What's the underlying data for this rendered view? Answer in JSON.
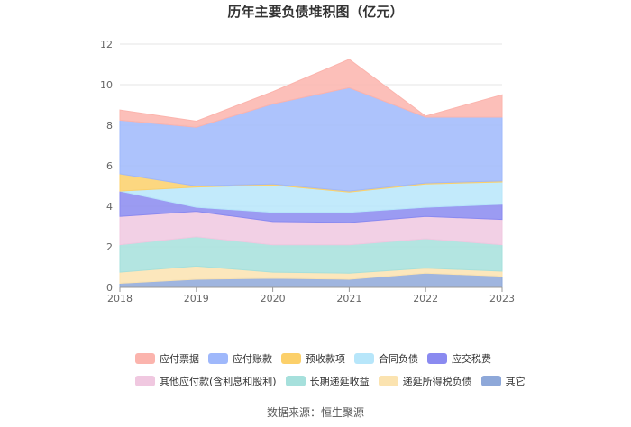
{
  "chart_data": {
    "type": "area",
    "stacked": true,
    "title": "历年主要负债堆积图（亿元）",
    "x": [
      "2018",
      "2019",
      "2020",
      "2021",
      "2022",
      "2023"
    ],
    "ylim": [
      0,
      12
    ],
    "yticks": [
      0,
      2,
      4,
      6,
      8,
      10,
      12
    ],
    "grid": true,
    "legend_position": "bottom",
    "series": [
      {
        "name": "其它",
        "color": "#8ea8d9",
        "values": [
          0.2,
          0.4,
          0.45,
          0.4,
          0.7,
          0.55
        ]
      },
      {
        "name": "递延所得税负债",
        "color": "#fbe3b0",
        "values": [
          0.55,
          0.65,
          0.3,
          0.3,
          0.25,
          0.25
        ]
      },
      {
        "name": "长期递延收益",
        "color": "#a6e0dc",
        "values": [
          1.35,
          1.45,
          1.35,
          1.4,
          1.45,
          1.3
        ]
      },
      {
        "name": "其他应付款(含利息和股利)",
        "color": "#f0c8e0",
        "values": [
          1.4,
          1.25,
          1.15,
          1.1,
          1.1,
          1.25
        ]
      },
      {
        "name": "应交税费",
        "color": "#8a8af0",
        "values": [
          1.25,
          0.2,
          0.45,
          0.5,
          0.45,
          0.75
        ]
      },
      {
        "name": "合同负债",
        "color": "#b7e6fa",
        "values": [
          0.0,
          1.0,
          1.35,
          1.0,
          1.15,
          1.1
        ]
      },
      {
        "name": "预收款项",
        "color": "#fcd06a",
        "values": [
          0.85,
          0.05,
          0.05,
          0.05,
          0.05,
          0.05
        ]
      },
      {
        "name": "应付账款",
        "color": "#9fb8fb",
        "values": [
          2.65,
          2.9,
          3.95,
          5.1,
          3.25,
          3.15
        ]
      },
      {
        "name": "应付票据",
        "color": "#fbb4ad",
        "values": [
          0.5,
          0.3,
          0.6,
          1.4,
          0.05,
          1.1
        ]
      }
    ],
    "legend_order": [
      "应付票据",
      "应付账款",
      "预收款项",
      "合同负债",
      "应交税费",
      "其他应付款(含利息和股利)",
      "长期递延收益",
      "递延所得税负债",
      "其它"
    ]
  },
  "footer": {
    "source": "数据来源：恒生聚源"
  }
}
